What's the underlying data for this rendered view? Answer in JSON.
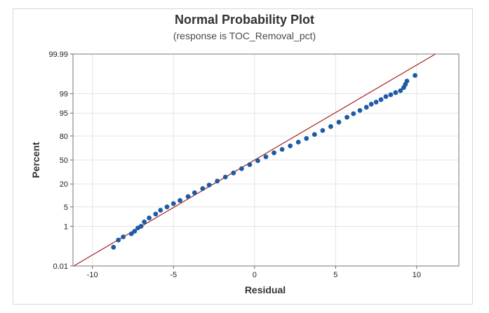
{
  "chart_data": {
    "type": "scatter",
    "title": "Normal Probability Plot",
    "subtitle": "(response is TOC_Removal_pct)",
    "xlabel": "Residual",
    "ylabel": "Percent",
    "xlim": [
      -11.2,
      12.6
    ],
    "x_ticks": [
      -10,
      -5,
      0,
      5,
      10
    ],
    "y_ticks": [
      0.01,
      1,
      5,
      20,
      50,
      80,
      95,
      99,
      99.99
    ],
    "y_tick_labels": [
      "0.01",
      "1",
      "5",
      "20",
      "50",
      "80",
      "95",
      "99",
      "99.99"
    ],
    "y_scale": "normal-probability",
    "grid": true,
    "reference_line": {
      "color": "#a51f1f",
      "mean": 0,
      "sd": 3.0
    },
    "series": [
      {
        "color": "#1f5aa6",
        "x": [
          -8.7,
          -8.4,
          -8.1,
          -7.6,
          -7.4,
          -7.2,
          -7.0,
          -6.8,
          -6.5,
          -6.1,
          -5.8,
          -5.4,
          -5.0,
          -4.6,
          -4.1,
          -3.7,
          -3.2,
          -2.8,
          -2.3,
          -1.8,
          -1.3,
          -0.8,
          -0.3,
          0.2,
          0.7,
          1.2,
          1.7,
          2.2,
          2.7,
          3.2,
          3.7,
          4.2,
          4.7,
          5.2,
          5.7,
          6.1,
          6.5,
          6.9,
          7.2,
          7.5,
          7.8,
          8.1,
          8.4,
          8.7,
          9.0,
          9.2,
          9.3,
          9.4,
          9.9
        ],
        "y": [
          0.11,
          0.25,
          0.35,
          0.48,
          0.62,
          0.85,
          1.0,
          1.5,
          2.1,
          2.9,
          3.9,
          5.0,
          6.3,
          7.8,
          10.0,
          12.5,
          15.8,
          19.0,
          23.0,
          27.5,
          32.5,
          38.0,
          43.5,
          49.0,
          54.5,
          60.0,
          64.5,
          69.0,
          73.5,
          77.5,
          81.5,
          85.0,
          88.0,
          90.8,
          93.3,
          94.8,
          95.9,
          96.8,
          97.5,
          97.9,
          98.3,
          98.7,
          98.9,
          99.1,
          99.25,
          99.45,
          99.6,
          99.72,
          99.85
        ]
      }
    ]
  }
}
